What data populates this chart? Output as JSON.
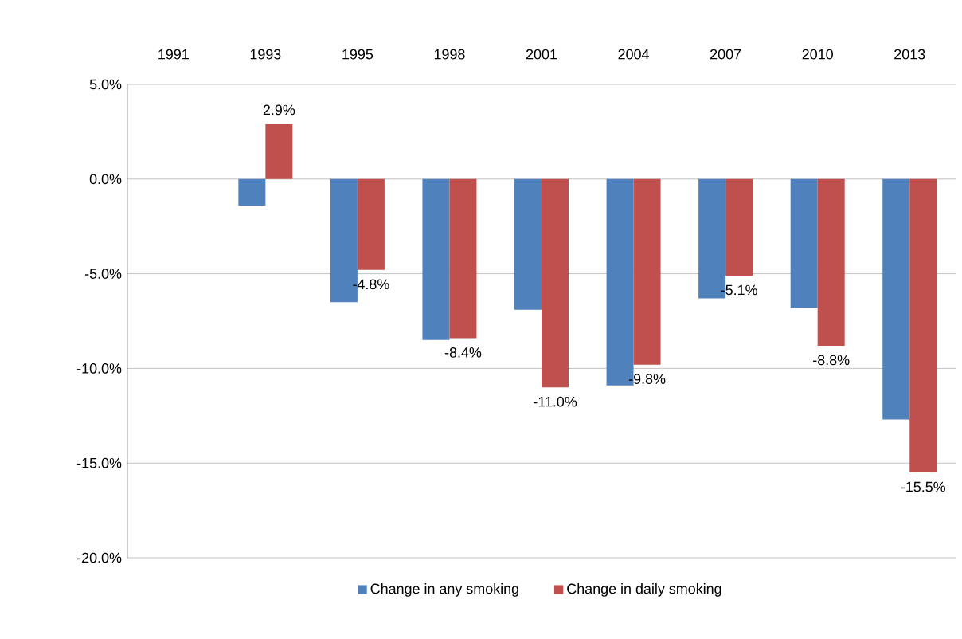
{
  "chart_data": {
    "type": "bar",
    "categories": [
      "1991",
      "1993",
      "1995",
      "1998",
      "2001",
      "2004",
      "2007",
      "2010",
      "2013"
    ],
    "series": [
      {
        "name": "Change in any smoking",
        "color": "#4f81bd",
        "values": [
          null,
          -1.4,
          -6.5,
          -8.5,
          -6.9,
          -10.9,
          -6.3,
          -6.8,
          -12.7
        ]
      },
      {
        "name": "Change in daily smoking",
        "color": "#c0504d",
        "values": [
          null,
          2.9,
          -4.8,
          -8.4,
          -11.0,
          -9.8,
          -5.1,
          -8.8,
          -15.5
        ],
        "value_labels": [
          null,
          "2.9%",
          "-4.8%",
          "-8.4%",
          "-11.0%",
          "-9.8%",
          "-5.1%",
          "-8.8%",
          "-15.5%"
        ]
      }
    ],
    "ylim": [
      -20,
      5
    ],
    "yticks": [
      {
        "value": 5,
        "label": "5.0%"
      },
      {
        "value": 0,
        "label": "0.0%"
      },
      {
        "value": -5,
        "label": "-5.0%"
      },
      {
        "value": -10,
        "label": "-10.0%"
      },
      {
        "value": -15,
        "label": "-15.0%"
      },
      {
        "value": -20,
        "label": "-20.0%"
      }
    ],
    "grid": "y",
    "legend": "bottom"
  }
}
